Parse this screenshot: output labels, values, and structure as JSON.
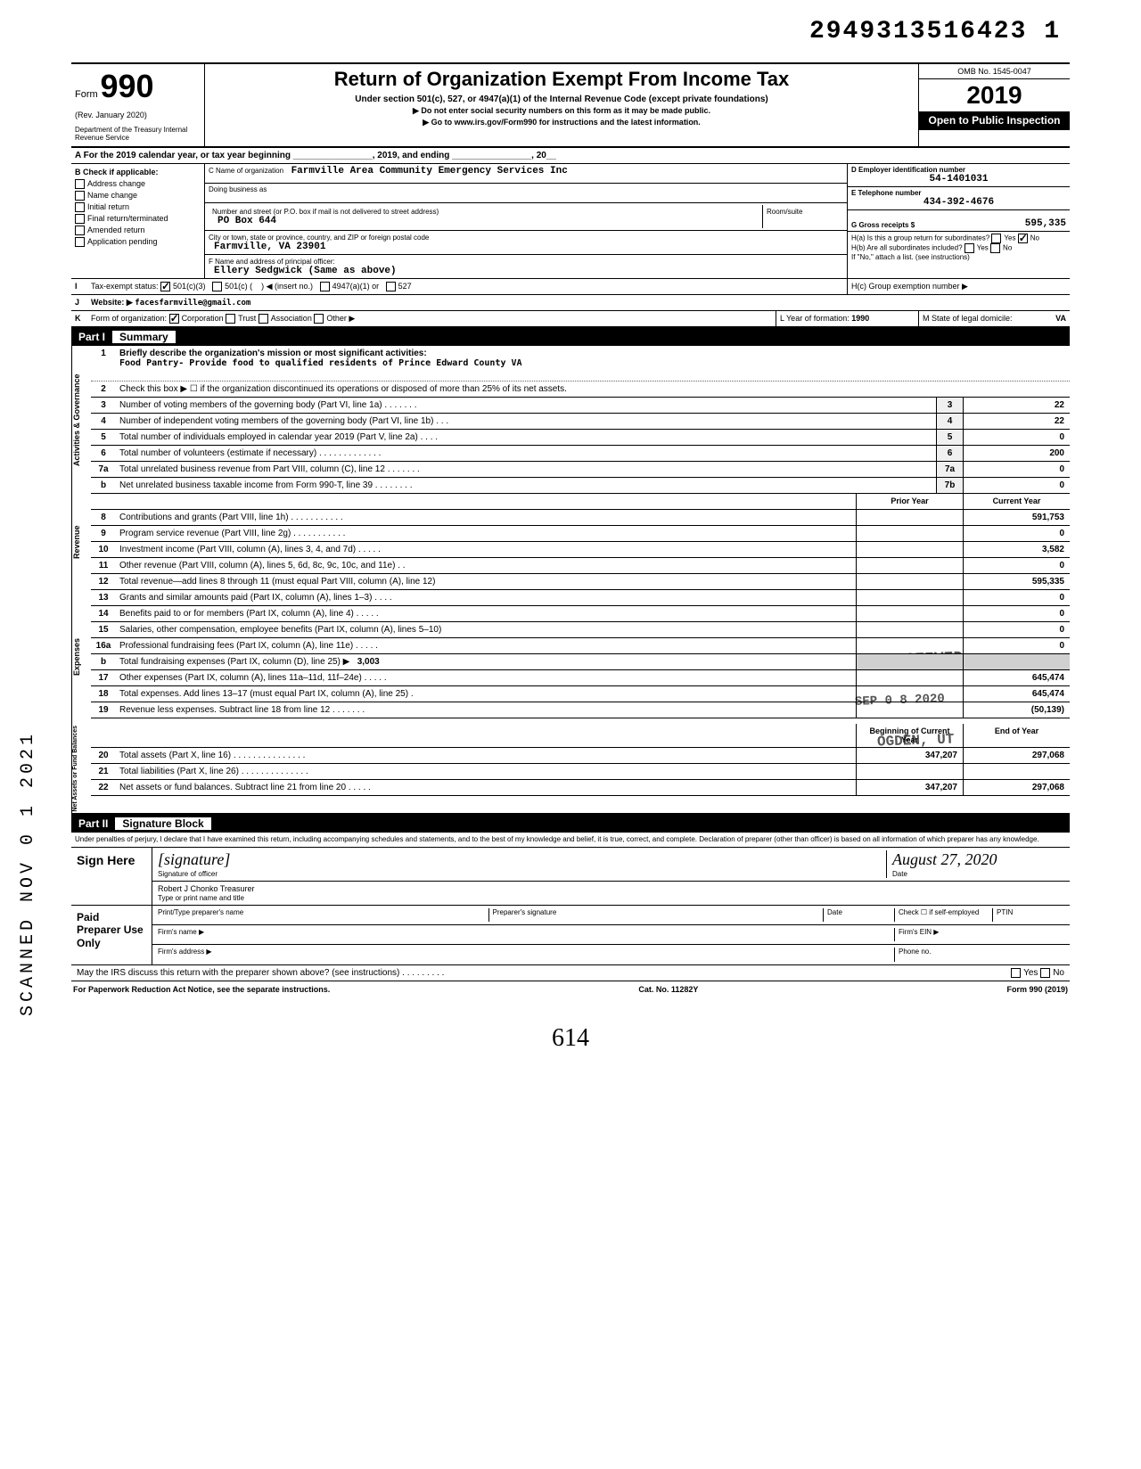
{
  "top_number": "2949313516423 1",
  "form": {
    "label": "Form",
    "number": "990",
    "rev": "(Rev. January 2020)",
    "dept": "Department of the Treasury\nInternal Revenue Service",
    "title": "Return of Organization Exempt From Income Tax",
    "subtitle": "Under section 501(c), 527, or 4947(a)(1) of the Internal Revenue Code (except private foundations)",
    "note1": "▶ Do not enter social security numbers on this form as it may be made public.",
    "note2": "▶ Go to www.irs.gov/Form990 for instructions and the latest information.",
    "omb": "OMB No. 1545-0047",
    "year": "2019",
    "open": "Open to Public Inspection"
  },
  "row_a": "A   For the 2019 calendar year, or tax year beginning ________________, 2019, and ending ________________, 20__",
  "block_b": {
    "header": "B  Check if applicable:",
    "items": [
      "Address change",
      "Name change",
      "Initial return",
      "Final return/terminated",
      "Amended return",
      "Application pending"
    ]
  },
  "block_c": {
    "name_lbl": "C Name of organization",
    "name_val": "Farmville Area Community Emergency Services Inc",
    "dba_lbl": "Doing business as",
    "addr_lbl": "Number and street (or P.O. box if mail is not delivered to street address)",
    "addr_val": "PO Box 644",
    "room_lbl": "Room/suite",
    "city_lbl": "City or town, state or province, country, and ZIP or foreign postal code",
    "city_val": "Farmville, VA  23901",
    "officer_lbl": "F Name and address of principal officer:",
    "officer_val": "Ellery Sedgwick (Same as above)"
  },
  "block_d": {
    "ein_lbl": "D Employer identification number",
    "ein_val": "54-1401031",
    "tel_lbl": "E Telephone number",
    "tel_val": "434-392-4676",
    "gross_lbl": "G Gross receipts $",
    "gross_val": "595,335",
    "h_a": "H(a) Is this a group return for subordinates?",
    "h_b": "H(b) Are all subordinates included?",
    "h_note": "If \"No,\" attach a list. (see instructions)",
    "h_c": "H(c) Group exemption number ▶",
    "yes": "Yes",
    "no": "No"
  },
  "row_i": {
    "label": "I",
    "text": "Tax-exempt status:",
    "opt1": "501(c)(3)",
    "opt2": "501(c) (",
    "opt2b": ") ◀ (insert no.)",
    "opt3": "4947(a)(1) or",
    "opt4": "527"
  },
  "row_j": {
    "label": "J",
    "text": "Website: ▶",
    "val": "facesfarmville@gmail.com"
  },
  "row_k": {
    "label": "K",
    "text": "Form of organization:",
    "opts": [
      "Corporation",
      "Trust",
      "Association",
      "Other ▶"
    ],
    "year_lbl": "L Year of formation:",
    "year_val": "1990",
    "state_lbl": "M State of legal domicile:",
    "state_val": "VA"
  },
  "part1": {
    "header_num": "Part I",
    "header_ttl": "Summary",
    "sections": {
      "gov": "Activities & Governance",
      "rev": "Revenue",
      "exp": "Expenses",
      "net": "Net Assets or Fund Balances"
    },
    "line1_lbl": "Briefly describe the organization's mission or most significant activities:",
    "line1_val": "Food Pantry- Provide food to qualified residents of Prince Edward County VA",
    "line2": "Check this box ▶ ☐ if the organization discontinued its operations or disposed of more than 25% of its net assets.",
    "lines": [
      {
        "n": "3",
        "t": "Number of voting members of the governing body (Part VI, line 1a) . . . . . . .",
        "box": "3",
        "v": "22"
      },
      {
        "n": "4",
        "t": "Number of independent voting members of the governing body (Part VI, line 1b) . . .",
        "box": "4",
        "v": "22"
      },
      {
        "n": "5",
        "t": "Total number of individuals employed in calendar year 2019 (Part V, line 2a) . . . .",
        "box": "5",
        "v": "0"
      },
      {
        "n": "6",
        "t": "Total number of volunteers (estimate if necessary) . . . . . . . . . . . . .",
        "box": "6",
        "v": "200"
      },
      {
        "n": "7a",
        "t": "Total unrelated business revenue from Part VIII, column (C), line 12 . . . . . . .",
        "box": "7a",
        "v": "0"
      },
      {
        "n": "b",
        "t": "Net unrelated business taxable income from Form 990-T, line 39 . . . . . . . .",
        "box": "7b",
        "v": "0"
      }
    ],
    "col_prior": "Prior Year",
    "col_curr": "Current Year",
    "rev_lines": [
      {
        "n": "8",
        "t": "Contributions and grants (Part VIII, line 1h) . . . . . . . . . . .",
        "p": "",
        "c": "591,753"
      },
      {
        "n": "9",
        "t": "Program service revenue (Part VIII, line 2g) . . . . . . . . . . .",
        "p": "",
        "c": "0"
      },
      {
        "n": "10",
        "t": "Investment income (Part VIII, column (A), lines 3, 4, and 7d) . . . . .",
        "p": "",
        "c": "3,582"
      },
      {
        "n": "11",
        "t": "Other revenue (Part VIII, column (A), lines 5, 6d, 8c, 9c, 10c, and 11e) . .",
        "p": "",
        "c": "0"
      },
      {
        "n": "12",
        "t": "Total revenue—add lines 8 through 11 (must equal Part VIII, column (A), line 12)",
        "p": "",
        "c": "595,335"
      }
    ],
    "exp_lines": [
      {
        "n": "13",
        "t": "Grants and similar amounts paid (Part IX, column (A), lines 1–3) . . . .",
        "p": "",
        "c": "0"
      },
      {
        "n": "14",
        "t": "Benefits paid to or for members (Part IX, column (A), line 4) . . . . .",
        "p": "",
        "c": "0"
      },
      {
        "n": "15",
        "t": "Salaries, other compensation, employee benefits (Part IX, column (A), lines 5–10)",
        "p": "",
        "c": "0"
      },
      {
        "n": "16a",
        "t": "Professional fundraising fees (Part IX, column (A), line 11e) . . . . .",
        "p": "",
        "c": "0"
      },
      {
        "n": "b",
        "t": "Total fundraising expenses (Part IX, column (D), line 25) ▶",
        "p": "3,003",
        "c": "",
        "single": true
      },
      {
        "n": "17",
        "t": "Other expenses (Part IX, column (A), lines 11a–11d, 11f–24e) . . . . .",
        "p": "",
        "c": "645,474"
      },
      {
        "n": "18",
        "t": "Total expenses. Add lines 13–17 (must equal Part IX, column (A), line 25) .",
        "p": "",
        "c": "645,474"
      },
      {
        "n": "19",
        "t": "Revenue less expenses. Subtract line 18 from line 12 . . . . . . .",
        "p": "",
        "c": "(50,139)"
      }
    ],
    "col_begin": "Beginning of Current Year",
    "col_end": "End of Year",
    "net_lines": [
      {
        "n": "20",
        "t": "Total assets (Part X, line 16) . . . . . . . . . . . . . . .",
        "p": "347,207",
        "c": "297,068"
      },
      {
        "n": "21",
        "t": "Total liabilities (Part X, line 26) . . . . . . . . . . . . . .",
        "p": "",
        "c": ""
      },
      {
        "n": "22",
        "t": "Net assets or fund balances. Subtract line 21 from line 20 . . . . .",
        "p": "347,207",
        "c": "297,068"
      }
    ]
  },
  "part2": {
    "header_num": "Part II",
    "header_ttl": "Signature Block",
    "declare": "Under penalties of perjury, I declare that I have examined this return, including accompanying schedules and statements, and to the best of my knowledge and belief, it is true, correct, and complete. Declaration of preparer (other than officer) is based on all information of which preparer has any knowledge.",
    "sign_here": "Sign Here",
    "sig_lbl": "Signature of officer",
    "date_lbl": "Date",
    "date_val": "August 27, 2020",
    "name_val": "Robert J Chonko  Treasurer",
    "name_lbl": "Type or print name and title",
    "paid": "Paid Preparer Use Only",
    "prep_name_lbl": "Print/Type preparer's name",
    "prep_sig_lbl": "Preparer's signature",
    "prep_date_lbl": "Date",
    "prep_check": "Check ☐ if self-employed",
    "ptin_lbl": "PTIN",
    "firm_name_lbl": "Firm's name ▶",
    "firm_ein_lbl": "Firm's EIN ▶",
    "firm_addr_lbl": "Firm's address ▶",
    "phone_lbl": "Phone no.",
    "discuss": "May the IRS discuss this return with the preparer shown above? (see instructions) . . . . . . . . .",
    "yes": "Yes",
    "no": "No"
  },
  "footer": {
    "left": "For Paperwork Reduction Act Notice, see the separate instructions.",
    "mid": "Cat. No. 11282Y",
    "right": "Form 990 (2019)"
  },
  "scan_side": "SCANNED NOV 0 1 2021",
  "stamps": {
    "received": "RECEIVED",
    "date": "SEP 0 8 2020",
    "ogden": "OGDEN, UT"
  },
  "bottom_hand": "614"
}
